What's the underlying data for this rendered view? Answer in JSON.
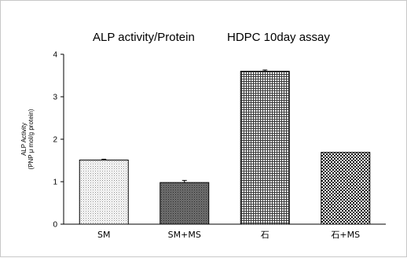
{
  "chart_data": {
    "type": "bar",
    "title": "ALP activity/Protein",
    "subtitle": "HDPC 10day assay",
    "ylabel_line1": "ALP Activity",
    "ylabel_line2": "(PNP μ mol/g protein)",
    "xlabel": "",
    "categories": [
      "SM",
      "SM+MS",
      "石",
      "石+MS"
    ],
    "values": [
      1.51,
      0.98,
      3.6,
      1.69
    ],
    "errors": [
      0.02,
      0.05,
      0.03,
      0.0
    ],
    "ylim": [
      0,
      4
    ],
    "yticks": [
      "0",
      "1",
      "2",
      "3",
      "4"
    ],
    "grid": false,
    "bar_fills": [
      "light-dots",
      "dark-dots",
      "crosshatch",
      "checker"
    ],
    "colors": {
      "bar_border": "#000000",
      "axis": "#000000"
    }
  }
}
